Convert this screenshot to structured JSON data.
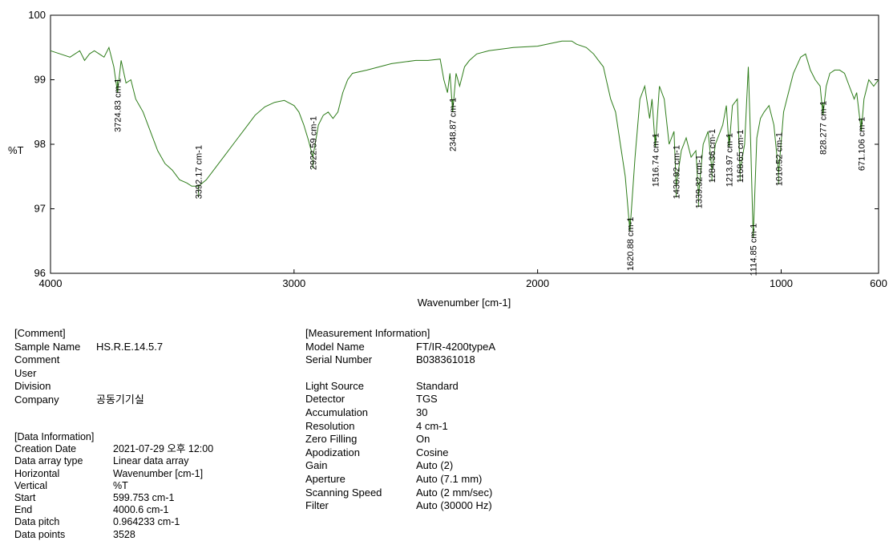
{
  "chart_data": {
    "type": "line",
    "title": "",
    "xlabel": "Wavenumber [cm-1]",
    "ylabel": "%T",
    "xlim": [
      4000,
      600
    ],
    "ylim": [
      96,
      100
    ],
    "x_reversed": true,
    "x_ticks": [
      4000,
      3000,
      2000,
      1000,
      600
    ],
    "y_ticks": [
      96,
      97,
      98,
      99,
      100
    ],
    "grid": false,
    "line_color": "#2e7d1a",
    "series": [
      {
        "x": [
          4000,
          3960,
          3920,
          3880,
          3860,
          3840,
          3820,
          3800,
          3780,
          3760,
          3740,
          3724.83,
          3710,
          3690,
          3670,
          3650,
          3620,
          3590,
          3560,
          3530,
          3500,
          3470,
          3440,
          3420,
          3400,
          3392.17,
          3360,
          3320,
          3280,
          3240,
          3200,
          3160,
          3120,
          3080,
          3040,
          3000,
          2980,
          2960,
          2940,
          2922.59,
          2900,
          2880,
          2860,
          2840,
          2820,
          2800,
          2780,
          2760,
          2700,
          2650,
          2600,
          2500,
          2450,
          2400,
          2385,
          2370,
          2360,
          2348.87,
          2335,
          2320,
          2300,
          2280,
          2250,
          2200,
          2100,
          2000,
          1900,
          1860,
          1840,
          1800,
          1770,
          1750,
          1730,
          1715,
          1700,
          1680,
          1660,
          1640,
          1620.88,
          1600,
          1580,
          1560,
          1540,
          1530,
          1516.74,
          1500,
          1480,
          1460,
          1440,
          1430.92,
          1410,
          1390,
          1370,
          1350,
          1339.32,
          1320,
          1300,
          1284.36,
          1270,
          1240,
          1225,
          1213.97,
          1200,
          1180,
          1168.65,
          1150,
          1135,
          1125,
          1114.85,
          1100,
          1085,
          1070,
          1050,
          1030,
          1010.52,
          990,
          970,
          950,
          920,
          900,
          880,
          860,
          840,
          828.277,
          815,
          800,
          780,
          760,
          740,
          720,
          700,
          690,
          671.106,
          660,
          640,
          620,
          600
        ],
        "y": [
          99.45,
          99.4,
          99.35,
          99.45,
          99.3,
          99.4,
          99.45,
          99.4,
          99.35,
          99.5,
          99.2,
          98.8,
          99.3,
          98.95,
          99.0,
          98.7,
          98.5,
          98.2,
          97.9,
          97.7,
          97.6,
          97.45,
          97.4,
          97.35,
          97.35,
          97.35,
          97.45,
          97.65,
          97.85,
          98.05,
          98.25,
          98.45,
          98.58,
          98.65,
          98.68,
          98.6,
          98.5,
          98.3,
          98.05,
          97.8,
          98.3,
          98.45,
          98.5,
          98.4,
          98.5,
          98.8,
          99.0,
          99.1,
          99.15,
          99.2,
          99.25,
          99.3,
          99.3,
          99.32,
          99.0,
          98.8,
          99.1,
          98.5,
          99.1,
          98.9,
          99.2,
          99.3,
          99.4,
          99.45,
          99.5,
          99.52,
          99.6,
          99.6,
          99.55,
          99.5,
          99.4,
          99.3,
          99.2,
          98.95,
          98.7,
          98.5,
          98.0,
          97.5,
          96.65,
          97.8,
          98.7,
          98.9,
          98.4,
          98.7,
          97.95,
          98.9,
          98.7,
          98.0,
          98.2,
          97.35,
          97.9,
          98.1,
          97.8,
          97.9,
          97.2,
          98.0,
          98.2,
          97.6,
          98.0,
          98.3,
          98.6,
          97.95,
          98.6,
          98.7,
          97.6,
          98.0,
          99.2,
          98.0,
          96.55,
          98.1,
          98.4,
          98.5,
          98.6,
          98.3,
          97.55,
          98.5,
          98.8,
          99.1,
          99.35,
          99.4,
          99.15,
          99.0,
          98.9,
          98.45,
          98.9,
          99.1,
          99.15,
          99.15,
          99.1,
          98.9,
          98.7,
          98.8,
          98.2,
          98.7,
          99.0,
          98.9,
          99.0
        ]
      }
    ],
    "annotations": [
      {
        "x": 3724.83,
        "y": 98.8,
        "label": "3724.83 cm-1",
        "side": "above"
      },
      {
        "x": 3392.17,
        "y": 97.35,
        "label": "3392.17 cm-1",
        "side": "below"
      },
      {
        "x": 2922.59,
        "y": 97.8,
        "label": "2922.59 cm-1",
        "side": "below"
      },
      {
        "x": 2348.87,
        "y": 98.5,
        "label": "2348.87 cm-1",
        "side": "above"
      },
      {
        "x": 1620.88,
        "y": 96.65,
        "label": "1620.88 cm-1",
        "side": "above"
      },
      {
        "x": 1516.74,
        "y": 97.95,
        "label": "1516.74 cm-1",
        "side": "above"
      },
      {
        "x": 1430.92,
        "y": 97.35,
        "label": "1430.92 cm-1",
        "side": "below"
      },
      {
        "x": 1339.32,
        "y": 97.2,
        "label": "1339.32 cm-1",
        "side": "below"
      },
      {
        "x": 1284.36,
        "y": 97.6,
        "label": "1284.36 cm-1",
        "side": "below"
      },
      {
        "x": 1213.97,
        "y": 97.95,
        "label": "1213.97 cm-1",
        "side": "above"
      },
      {
        "x": 1168.65,
        "y": 97.6,
        "label": "1168.65 cm-1",
        "side": "below"
      },
      {
        "x": 1114.85,
        "y": 96.55,
        "label": "1114.85 cm-1",
        "side": "above"
      },
      {
        "x": 1010.52,
        "y": 97.55,
        "label": "1010.52 cm-1",
        "side": "below"
      },
      {
        "x": 828.277,
        "y": 98.45,
        "label": "828.277 cm-1",
        "side": "above"
      },
      {
        "x": 671.106,
        "y": 98.2,
        "label": "671.106 cm-1",
        "side": "above"
      }
    ]
  },
  "comment": {
    "heading": "[Comment]",
    "rows": [
      {
        "key": "Sample Name",
        "value": "HS.R.E.14.5.7"
      },
      {
        "key": "Comment",
        "value": ""
      },
      {
        "key": "User",
        "value": ""
      },
      {
        "key": "Division",
        "value": ""
      },
      {
        "key": "Company",
        "value": "공동기기실"
      }
    ]
  },
  "data_information": {
    "heading": "[Data Information]",
    "rows": [
      {
        "key": "Creation Date",
        "value": "2021-07-29 오후 12:00"
      },
      {
        "key": "Data array type",
        "value": "Linear data array"
      },
      {
        "key": "Horizontal",
        "value": "Wavenumber [cm-1]"
      },
      {
        "key": "Vertical",
        "value": "%T"
      },
      {
        "key": "Start",
        "value": "599.753 cm-1"
      },
      {
        "key": "End",
        "value": "4000.6 cm-1"
      },
      {
        "key": "Data pitch",
        "value": "0.964233 cm-1"
      },
      {
        "key": "Data points",
        "value": "3528"
      }
    ]
  },
  "measurement_information": {
    "heading": "[Measurement Information]",
    "rows_top": [
      {
        "key": "Model Name",
        "value": "FT/IR-4200typeA"
      },
      {
        "key": "Serial Number",
        "value": "B038361018"
      }
    ],
    "rows_bottom": [
      {
        "key": "Light Source",
        "value": "Standard"
      },
      {
        "key": "Detector",
        "value": "TGS"
      },
      {
        "key": "Accumulation",
        "value": "30"
      },
      {
        "key": "Resolution",
        "value": "4 cm-1"
      },
      {
        "key": "Zero Filling",
        "value": "On"
      },
      {
        "key": "Apodization",
        "value": "Cosine"
      },
      {
        "key": "Gain",
        "value": "Auto (2)"
      },
      {
        "key": "Aperture",
        "value": "Auto (7.1 mm)"
      },
      {
        "key": "Scanning Speed",
        "value": "Auto (2 mm/sec)"
      },
      {
        "key": "Filter",
        "value": "Auto (30000 Hz)"
      }
    ]
  }
}
